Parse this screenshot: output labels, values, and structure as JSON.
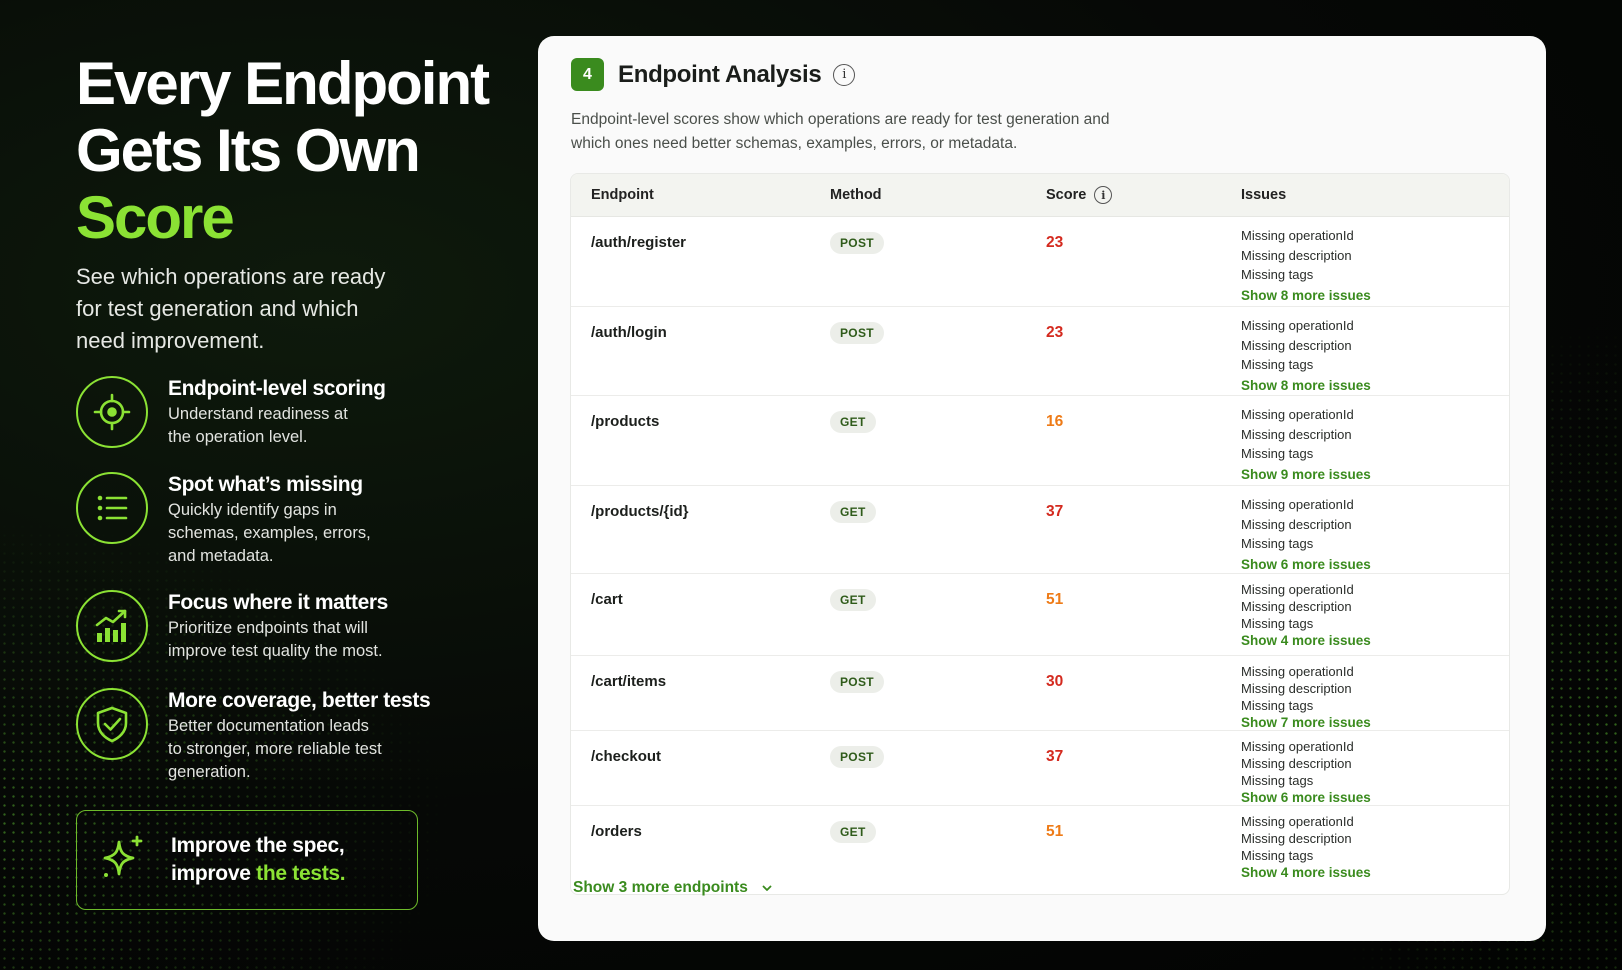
{
  "hero": {
    "title_line1": "Every Endpoint",
    "title_line2": "Gets Its Own",
    "title_accent": "Score",
    "subtitle": "See which operations are ready for test generation and which need improvement."
  },
  "features": [
    {
      "icon": "crosshair-icon",
      "title": "Endpoint-level scoring",
      "desc": "Understand readiness at the operation level."
    },
    {
      "icon": "list-icon",
      "title": "Spot what’s missing",
      "desc": "Quickly identify gaps in schemas, examples, errors, and metadata."
    },
    {
      "icon": "bar-chart-icon",
      "title": "Focus where it matters",
      "desc": "Prioritize endpoints that will improve test quality the most."
    },
    {
      "icon": "shield-check-icon",
      "title": "More coverage, better tests",
      "desc": "Better documentation leads to stronger, more reliable test generation."
    }
  ],
  "cta": {
    "line1": "Improve the spec,",
    "line2_prefix": "improve ",
    "line2_accent": "the tests."
  },
  "card": {
    "step": "4",
    "title": "Endpoint Analysis",
    "info": "i",
    "description": "Endpoint-level scores show which operations are ready for test generation and which ones need better schemas, examples, errors, or metadata.",
    "columns": {
      "endpoint": "Endpoint",
      "method": "Method",
      "score": "Score",
      "issues": "Issues"
    },
    "rows": [
      {
        "endpoint": "/auth/register",
        "method": "POST",
        "score": "23",
        "score_color": "#d42a1f",
        "issues": [
          "Missing operationId",
          "Missing description",
          "Missing tags"
        ],
        "more": "Show 8 more issues"
      },
      {
        "endpoint": "/auth/login",
        "method": "POST",
        "score": "23",
        "score_color": "#d42a1f",
        "issues": [
          "Missing operationId",
          "Missing description",
          "Missing tags"
        ],
        "more": "Show 8 more issues"
      },
      {
        "endpoint": "/products",
        "method": "GET",
        "score": "16",
        "score_color": "#ee7b17",
        "issues": [
          "Missing operationId",
          "Missing description",
          "Missing tags"
        ],
        "more": "Show 9 more issues"
      },
      {
        "endpoint": "/products/{id}",
        "method": "GET",
        "score": "37",
        "score_color": "#d42a1f",
        "issues": [
          "Missing operationId",
          "Missing description",
          "Missing tags"
        ],
        "more": "Show 6 more issues"
      },
      {
        "endpoint": "/cart",
        "method": "GET",
        "score": "51",
        "score_color": "#ee7b17",
        "issues": [
          "Missing operationId",
          "Missing description",
          "Missing tags"
        ],
        "more": "Show 4 more issues"
      },
      {
        "endpoint": "/cart/items",
        "method": "POST",
        "score": "30",
        "score_color": "#d42a1f",
        "issues": [
          "Missing operationId",
          "Missing description",
          "Missing tags"
        ],
        "more": "Show 7 more issues"
      },
      {
        "endpoint": "/checkout",
        "method": "POST",
        "score": "37",
        "score_color": "#d42a1f",
        "issues": [
          "Missing operationId",
          "Missing description",
          "Missing tags"
        ],
        "more": "Show 6 more issues"
      },
      {
        "endpoint": "/orders",
        "method": "GET",
        "score": "51",
        "score_color": "#ee7b17",
        "issues": [
          "Missing operationId",
          "Missing description",
          "Missing tags"
        ],
        "more": "Show 4 more issues"
      }
    ],
    "show_more_endpoints": "Show 3 more endpoints"
  }
}
